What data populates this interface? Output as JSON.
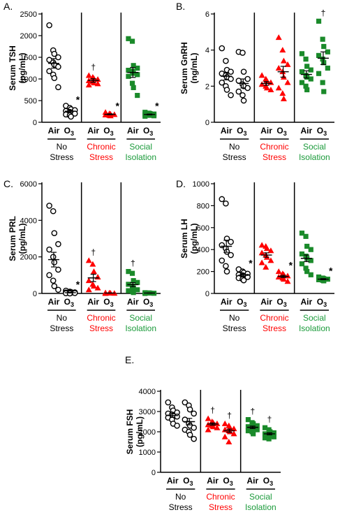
{
  "figure": {
    "x_tick_labels": [
      "Air",
      "O",
      "3"
    ],
    "group_labels": [
      {
        "line1": "No",
        "line2": "Stress",
        "color": "#000000"
      },
      {
        "line1": "Chronic",
        "line2": "Stress",
        "color": "#ff0000"
      },
      {
        "line1": "Social",
        "line2": "Isolation",
        "color": "#1a9a3a"
      }
    ],
    "colors": {
      "no_stress": "#000000",
      "chronic_stress": "#ff0000",
      "social_isolation": "#1a8a2a"
    },
    "markers": {
      "no_stress": "open-circle",
      "chronic_stress": "filled-triangle",
      "social_isolation": "filled-square"
    },
    "significance_symbols": {
      "vs_air": "*",
      "vs_no_stress": "†"
    }
  },
  "chart_data": [
    {
      "type": "scatter",
      "panel": "A.",
      "ylabel_line1": "Serum TSH",
      "ylabel_line2": "(pg/mL)",
      "ylim": [
        0,
        2500
      ],
      "yticks": [
        0,
        500,
        1000,
        1500,
        2000,
        2500
      ],
      "groups": [
        {
          "group": "No Stress",
          "air": {
            "values": [
              2240,
              1660,
              1580,
              1500,
              1440,
              1380,
              1330,
              1280,
              1180,
              1100,
              1020,
              810
            ],
            "mean": 1360,
            "sem": 110
          },
          "o3": {
            "values": [
              380,
              330,
              300,
              280,
              260,
              240,
              220,
              200,
              180,
              160,
              130
            ],
            "mean": 255,
            "sem": 25,
            "mark": "*"
          }
        },
        {
          "group": "Chronic Stress",
          "air": {
            "values": [
              1080,
              1040,
              1010,
              990,
              960,
              940,
              910,
              890,
              860
            ],
            "mean": 965,
            "sem": 40,
            "mark": "†"
          },
          "o3": {
            "values": [
              230,
              200,
              190,
              180,
              170,
              160,
              150
            ],
            "mean": 185,
            "sem": 10,
            "mark": "*"
          }
        },
        {
          "group": "Social Isolation",
          "air": {
            "values": [
              1930,
              1870,
              1310,
              1250,
              1200,
              1180,
              1130,
              1100,
              1060,
              900,
              800,
              620
            ],
            "mean": 1150,
            "sem": 115
          },
          "o3": {
            "values": [
              230,
              210,
              200,
              190,
              180,
              170,
              160,
              150,
              140
            ],
            "mean": 180,
            "sem": 10,
            "mark": "*"
          }
        }
      ]
    },
    {
      "type": "scatter",
      "panel": "B.",
      "ylabel_line1": "Serum GnRH",
      "ylabel_line2": "(ng/mL)",
      "ylim": [
        0,
        6
      ],
      "yticks": [
        0,
        2,
        4,
        6
      ],
      "groups": [
        {
          "group": "No Stress",
          "air": {
            "values": [
              4.1,
              3.4,
              2.9,
              2.8,
              2.7,
              2.6,
              2.5,
              2.4,
              2.2,
              2.0,
              1.8,
              1.5
            ],
            "mean": 2.55,
            "sem": 0.2
          },
          "o3": {
            "values": [
              3.9,
              3.85,
              2.8,
              2.4,
              2.3,
              2.1,
              2.0,
              1.9,
              1.7,
              1.5,
              1.2
            ],
            "mean": 2.15,
            "sem": 0.25
          }
        },
        {
          "group": "Chronic Stress",
          "air": {
            "values": [
              2.6,
              2.4,
              2.3,
              2.2,
              2.1,
              2.0,
              1.9,
              1.8
            ],
            "mean": 2.15,
            "sem": 0.1
          },
          "o3": {
            "values": [
              4.7,
              4.0,
              3.4,
              3.2,
              3.0,
              2.8,
              2.5,
              2.2,
              1.9,
              1.6,
              1.3
            ],
            "mean": 2.8,
            "sem": 0.3
          }
        },
        {
          "group": "Social Isolation",
          "air": {
            "values": [
              3.8,
              3.5,
              3.1,
              2.9,
              2.8,
              2.6,
              2.5,
              2.4,
              2.2,
              2.0,
              1.8
            ],
            "mean": 2.65,
            "sem": 0.2
          },
          "o3": {
            "values": [
              5.6,
              4.6,
              4.2,
              3.9,
              3.7,
              3.5,
              3.3,
              3.0,
              2.7,
              2.2,
              1.7
            ],
            "mean": 3.55,
            "sem": 0.35,
            "mark": "†"
          }
        }
      ]
    },
    {
      "type": "scatter",
      "panel": "C.",
      "ylabel_line1": "Serum PRL",
      "ylabel_line2": "(pg/mL)",
      "ylim": [
        0,
        6000
      ],
      "yticks": [
        0,
        2000,
        4000,
        6000
      ],
      "groups": [
        {
          "group": "No Stress",
          "air": {
            "values": [
              4800,
              4500,
              3300,
              2700,
              2400,
              2000,
              1700,
              1300,
              1000,
              700,
              400,
              200
            ],
            "mean": 1850,
            "sem": 400
          },
          "o3": {
            "values": [
              150,
              100,
              80,
              60,
              50,
              40,
              30,
              20,
              10,
              0
            ],
            "mean": 40,
            "sem": 15,
            "mark": "*"
          }
        },
        {
          "group": "Chronic Stress",
          "air": {
            "values": [
              1800,
              1600,
              1200,
              900,
              700,
              500,
              400,
              300,
              200
            ],
            "mean": 850,
            "sem": 200,
            "mark": "†"
          },
          "o3": {
            "values": [
              40,
              30,
              20,
              10,
              0
            ],
            "mean": 20,
            "sem": 5
          }
        },
        {
          "group": "Social Isolation",
          "air": {
            "values": [
              1200,
              1100,
              700,
              600,
              500,
              400,
              300,
              200,
              150,
              100,
              50
            ],
            "mean": 480,
            "sem": 110,
            "mark": "†"
          },
          "o3": {
            "values": [
              40,
              30,
              20,
              10,
              0
            ],
            "mean": 20,
            "sem": 5
          }
        }
      ]
    },
    {
      "type": "scatter",
      "panel": "D.",
      "ylabel_line1": "Serum LH",
      "ylabel_line2": "(pg/mL)",
      "ylim": [
        0,
        1000
      ],
      "yticks": [
        0,
        200,
        400,
        600,
        800,
        1000
      ],
      "groups": [
        {
          "group": "No Stress",
          "air": {
            "values": [
              860,
              820,
              500,
              470,
              440,
              410,
              380,
              350,
              300,
              250,
              200
            ],
            "mean": 430,
            "sem": 55
          },
          "o3": {
            "values": [
              220,
              200,
              190,
              180,
              170,
              165,
              160,
              150,
              140,
              130,
              120
            ],
            "mean": 165,
            "sem": 10,
            "mark": "*"
          }
        },
        {
          "group": "Chronic Stress",
          "air": {
            "values": [
              440,
              430,
              410,
              390,
              370,
              350,
              330,
              300,
              280,
              240
            ],
            "mean": 350,
            "sem": 20
          },
          "o3": {
            "values": [
              200,
              180,
              170,
              160,
              150,
              140,
              130,
              110
            ],
            "mean": 155,
            "sem": 10,
            "mark": "*"
          }
        },
        {
          "group": "Social Isolation",
          "air": {
            "values": [
              550,
              520,
              430,
              400,
              360,
              340,
              320,
              300,
              270,
              230,
              200,
              170
            ],
            "mean": 320,
            "sem": 30
          },
          "o3": {
            "values": [
              150,
              140,
              135,
              130,
              125,
              120,
              115
            ],
            "mean": 130,
            "sem": 5,
            "mark": "*"
          }
        }
      ]
    },
    {
      "type": "scatter",
      "panel": "E.",
      "ylabel_line1": "Serum FSH",
      "ylabel_line2": "(pg/mL)",
      "ylim": [
        0,
        4000
      ],
      "yticks": [
        0,
        1000,
        2000,
        3000,
        4000
      ],
      "groups": [
        {
          "group": "No Stress",
          "air": {
            "values": [
              3450,
              3200,
              3050,
              2950,
              2900,
              2850,
              2800,
              2750,
              2700,
              2600,
              2400,
              2300
            ],
            "mean": 2800,
            "sem": 90
          },
          "o3": {
            "values": [
              3450,
              3300,
              3100,
              2900,
              2600,
              2400,
              2300,
              2200,
              2100,
              2000,
              1850,
              1650
            ],
            "mean": 2500,
            "sem": 160
          }
        },
        {
          "group": "Chronic Stress",
          "air": {
            "values": [
              2650,
              2500,
              2450,
              2400,
              2350,
              2300,
              2250,
              2200,
              2100
            ],
            "mean": 2380,
            "sem": 55,
            "mark": "†"
          },
          "o3": {
            "values": [
              2400,
              2300,
              2200,
              2150,
              2100,
              2050,
              2000,
              1900,
              1750,
              1500
            ],
            "mean": 2050,
            "sem": 80,
            "mark": "†"
          }
        },
        {
          "group": "Social Isolation",
          "air": {
            "values": [
              2600,
              2450,
              2400,
              2300,
              2250,
              2200,
              2150,
              2100,
              2050,
              2000,
              1900
            ],
            "mean": 2220,
            "sem": 60,
            "mark": "†"
          },
          "o3": {
            "values": [
              2200,
              2100,
              2000,
              1950,
              1900,
              1850,
              1800,
              1750,
              1700,
              1650
            ],
            "mean": 1900,
            "sem": 50,
            "mark": "†"
          }
        }
      ]
    }
  ]
}
